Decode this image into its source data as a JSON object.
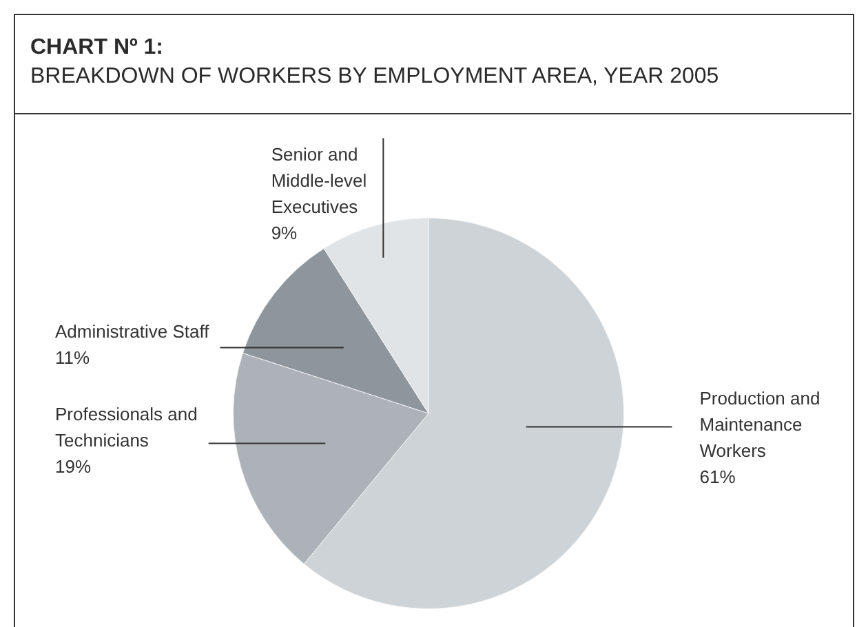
{
  "chart_data": {
    "type": "pie",
    "title": "CHART Nº 1:",
    "subtitle": "BREAKDOWN OF WORKERS BY EMPLOYMENT AREA, YEAR 2005",
    "categories": [
      "Production and Maintenance Workers",
      "Professionals and Technicians",
      "Administrative Staff",
      "Senior and Middle-level Executives"
    ],
    "values": [
      61,
      19,
      11,
      9
    ],
    "value_labels": [
      "61%",
      "19%",
      "11%",
      "9%"
    ],
    "colors": [
      "#cdd3d6",
      "#acb2b7",
      "#8e959b",
      "#e1e4e6"
    ],
    "legend": false
  }
}
